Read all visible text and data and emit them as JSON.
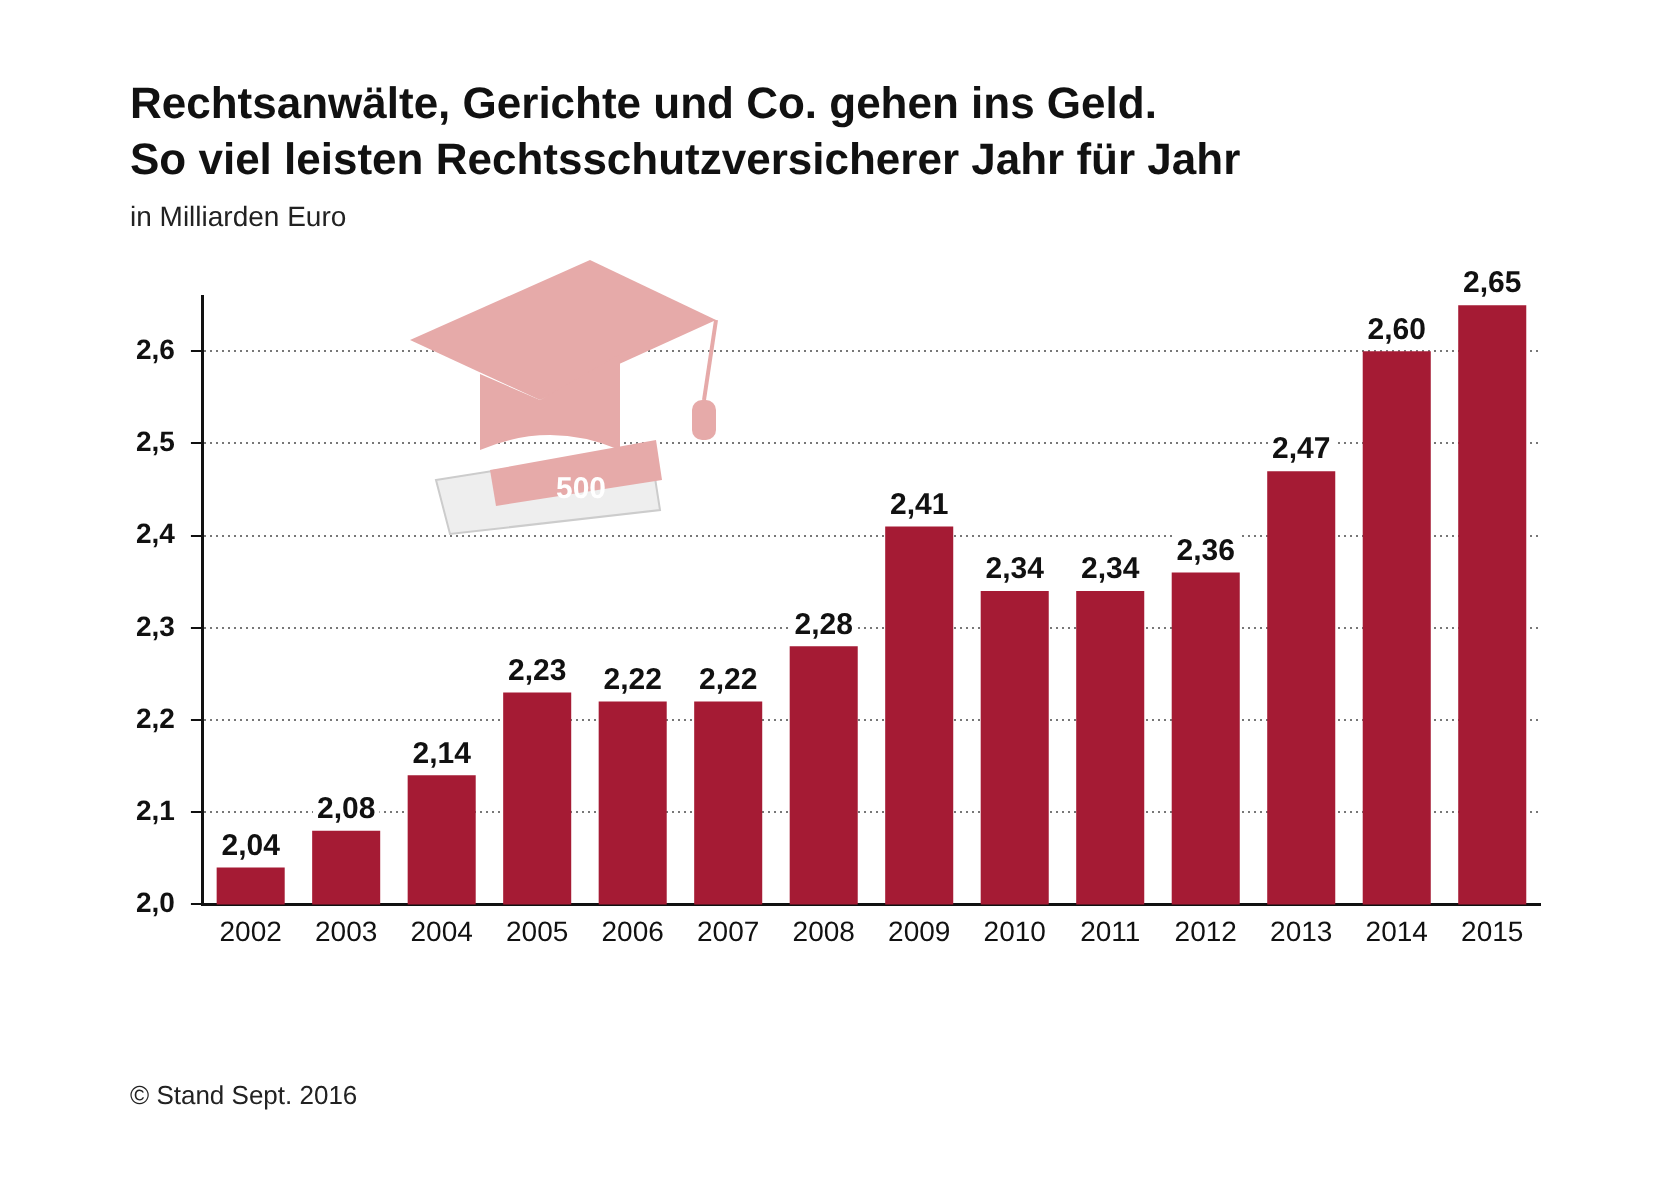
{
  "chart_data": {
    "type": "bar",
    "title": "Rechtsanwälte, Gerichte und Co. gehen ins Geld.\nSo viel leisten Rechtsschutzversicherer Jahr für Jahr",
    "subtitle": "in Milliarden Euro",
    "categories": [
      "2002",
      "2003",
      "2004",
      "2005",
      "2006",
      "2007",
      "2008",
      "2009",
      "2010",
      "2011",
      "2012",
      "2013",
      "2014",
      "2015"
    ],
    "values": [
      2.04,
      2.08,
      2.14,
      2.23,
      2.22,
      2.22,
      2.28,
      2.41,
      2.34,
      2.34,
      2.36,
      2.47,
      2.6,
      2.65
    ],
    "value_labels": [
      "2,04",
      "2,08",
      "2,14",
      "2,23",
      "2,22",
      "2,22",
      "2,28",
      "2,41",
      "2,34",
      "2,34",
      "2,36",
      "2,47",
      "2,60",
      "2,65"
    ],
    "color": "#a51b34",
    "ylim": [
      2.0,
      2.66
    ],
    "yticks": [
      {
        "value": 2.0,
        "label": "2,0"
      },
      {
        "value": 2.1,
        "label": "2,1"
      },
      {
        "value": 2.2,
        "label": "2,2"
      },
      {
        "value": 2.3,
        "label": "2,3"
      },
      {
        "value": 2.4,
        "label": "2,4"
      },
      {
        "value": 2.5,
        "label": "2,5"
      },
      {
        "value": 2.6,
        "label": "2,6"
      }
    ],
    "grid": "y",
    "legend": false,
    "annotations": [
      "500",
      "© Stand Sept. 2016"
    ]
  }
}
